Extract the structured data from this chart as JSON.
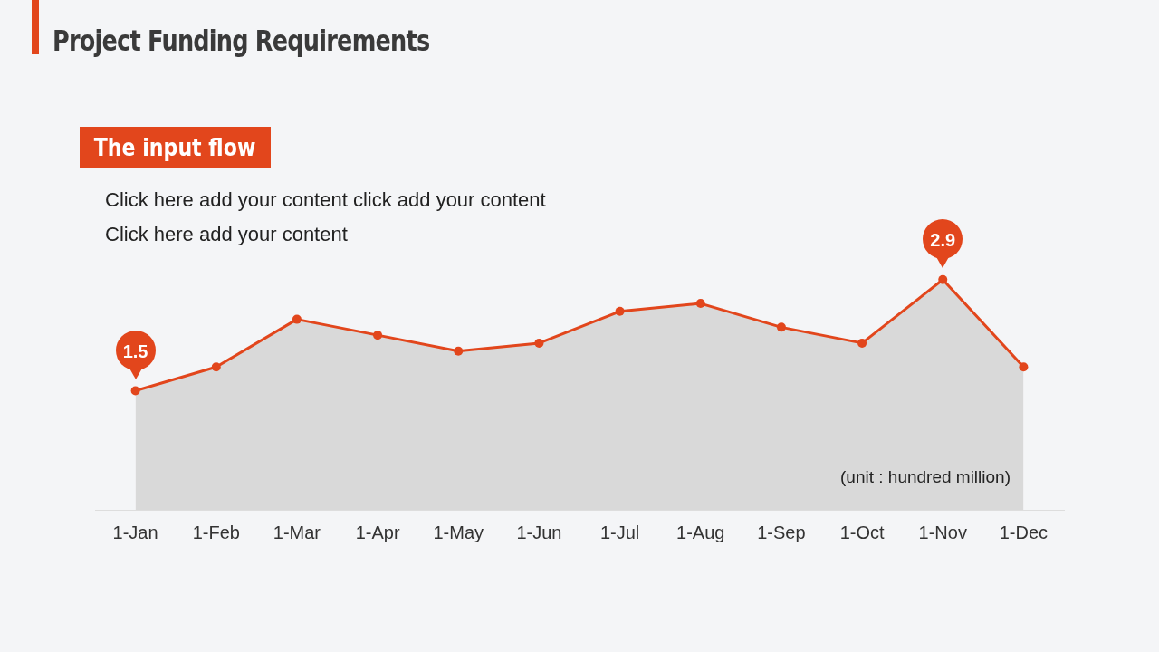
{
  "chart_data": {
    "type": "area",
    "title": "Project Funding Requirements",
    "subtitle": "The input flow",
    "annotations": [
      "Click here add your content click add your content",
      "Click here add your content",
      "(unit : hundred million)"
    ],
    "categories": [
      "1-Jan",
      "1-Feb",
      "1-Mar",
      "1-Apr",
      "1-May",
      "1-Jun",
      "1-Jul",
      "1-Aug",
      "1-Sep",
      "1-Oct",
      "1-Nov",
      "1-Dec"
    ],
    "series": [
      {
        "color": "#e2461c",
        "values": [
          1.5,
          1.8,
          2.4,
          2.2,
          2.0,
          2.1,
          2.5,
          2.6,
          2.3,
          2.1,
          2.9,
          1.8
        ],
        "value_labels": [
          "1.5",
          null,
          null,
          null,
          null,
          null,
          null,
          null,
          null,
          null,
          "2.9",
          null
        ]
      }
    ],
    "tick_labels": "x",
    "grid": false,
    "legend": false,
    "marker": "circle",
    "line_style": "solid"
  }
}
